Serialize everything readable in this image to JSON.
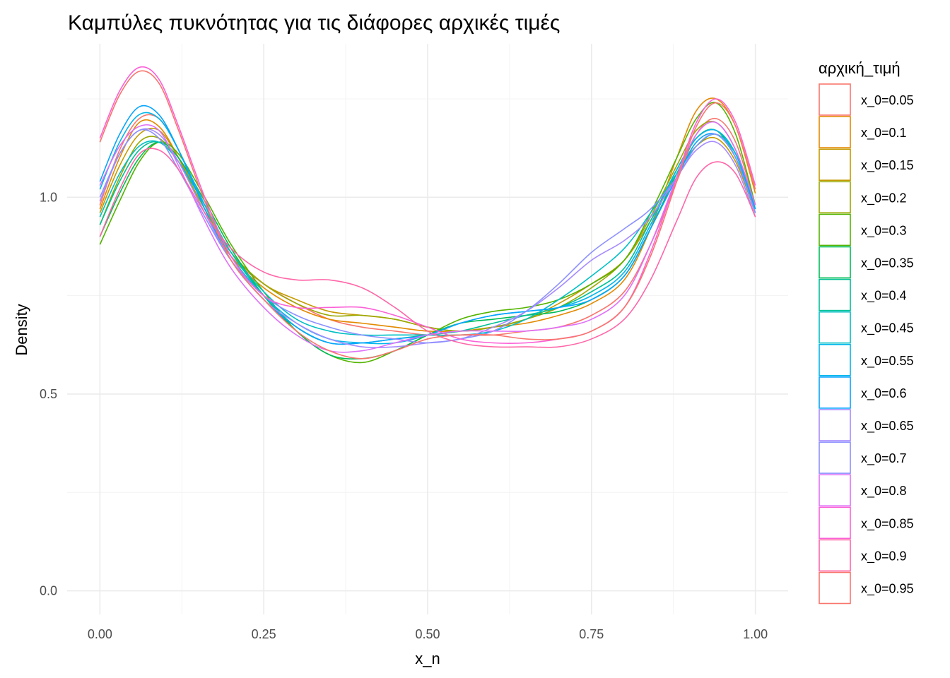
{
  "chart_data": {
    "type": "line",
    "title": "Καμπύλες πυκνότητας για τις διάφορες αρχικές τιμές",
    "xlabel": "x_n",
    "ylabel": "Density",
    "xlim": [
      -0.05,
      1.05
    ],
    "ylim": [
      -0.06,
      1.39
    ],
    "x_ticks": [
      0.0,
      0.25,
      0.5,
      0.75,
      1.0
    ],
    "x_tick_labels": [
      "0.00",
      "0.25",
      "0.50",
      "0.75",
      "1.00"
    ],
    "y_ticks": [
      0.0,
      0.5,
      1.0
    ],
    "y_tick_labels": [
      "0.0",
      "0.5",
      "1.0"
    ],
    "grid": true,
    "legend": {
      "title": "αρχική_τιμή",
      "position": "right"
    },
    "x": [
      0.0,
      0.03,
      0.06,
      0.09,
      0.12,
      0.16,
      0.2,
      0.25,
      0.3,
      0.35,
      0.4,
      0.45,
      0.5,
      0.55,
      0.6,
      0.65,
      0.7,
      0.75,
      0.8,
      0.84,
      0.88,
      0.91,
      0.94,
      0.97,
      1.0
    ],
    "series": [
      {
        "name": "x_0=0.05",
        "color": "#F8766D",
        "values": [
          0.98,
          1.12,
          1.2,
          1.2,
          1.12,
          0.97,
          0.85,
          0.78,
          0.73,
          0.69,
          0.67,
          0.66,
          0.65,
          0.65,
          0.65,
          0.66,
          0.67,
          0.7,
          0.76,
          0.88,
          1.04,
          1.16,
          1.2,
          1.14,
          0.98
        ]
      },
      {
        "name": "x_0=0.1",
        "color": "#E38900",
        "values": [
          0.97,
          1.1,
          1.19,
          1.18,
          1.1,
          0.96,
          0.85,
          0.77,
          0.72,
          0.69,
          0.68,
          0.67,
          0.66,
          0.66,
          0.67,
          0.68,
          0.7,
          0.73,
          0.79,
          0.92,
          1.1,
          1.22,
          1.25,
          1.18,
          1.01
        ]
      },
      {
        "name": "x_0=0.15",
        "color": "#C49A00",
        "values": [
          0.96,
          1.08,
          1.16,
          1.17,
          1.1,
          0.98,
          0.86,
          0.78,
          0.74,
          0.71,
          0.7,
          0.69,
          0.67,
          0.66,
          0.67,
          0.69,
          0.73,
          0.78,
          0.84,
          0.94,
          1.06,
          1.13,
          1.15,
          1.09,
          0.96
        ]
      },
      {
        "name": "x_0=0.2",
        "color": "#99A800",
        "values": [
          0.93,
          1.05,
          1.14,
          1.15,
          1.09,
          0.97,
          0.86,
          0.78,
          0.73,
          0.7,
          0.7,
          0.69,
          0.67,
          0.66,
          0.67,
          0.69,
          0.72,
          0.77,
          0.84,
          0.95,
          1.08,
          1.17,
          1.19,
          1.12,
          0.97
        ]
      },
      {
        "name": "x_0=0.3",
        "color": "#53B400",
        "values": [
          0.88,
          0.99,
          1.09,
          1.14,
          1.11,
          1.0,
          0.88,
          0.76,
          0.66,
          0.6,
          0.58,
          0.61,
          0.65,
          0.69,
          0.71,
          0.72,
          0.74,
          0.78,
          0.84,
          0.96,
          1.1,
          1.2,
          1.24,
          1.16,
          0.98
        ]
      },
      {
        "name": "x_0=0.35",
        "color": "#00BC56",
        "values": [
          0.9,
          1.01,
          1.1,
          1.14,
          1.1,
          0.99,
          0.87,
          0.75,
          0.66,
          0.6,
          0.59,
          0.61,
          0.65,
          0.68,
          0.69,
          0.7,
          0.71,
          0.74,
          0.8,
          0.92,
          1.06,
          1.15,
          1.17,
          1.1,
          0.96
        ]
      },
      {
        "name": "x_0=0.4",
        "color": "#00C094",
        "values": [
          0.93,
          1.04,
          1.12,
          1.14,
          1.09,
          0.98,
          0.86,
          0.75,
          0.67,
          0.63,
          0.63,
          0.64,
          0.65,
          0.66,
          0.68,
          0.7,
          0.72,
          0.76,
          0.82,
          0.94,
          1.07,
          1.15,
          1.17,
          1.11,
          0.97
        ]
      },
      {
        "name": "x_0=0.45",
        "color": "#00BFC4",
        "values": [
          0.95,
          1.06,
          1.13,
          1.14,
          1.09,
          0.98,
          0.86,
          0.76,
          0.69,
          0.66,
          0.65,
          0.65,
          0.65,
          0.65,
          0.66,
          0.69,
          0.74,
          0.8,
          0.87,
          0.96,
          1.06,
          1.13,
          1.16,
          1.11,
          0.98
        ]
      },
      {
        "name": "x_0=0.55",
        "color": "#00B6EB",
        "values": [
          1.02,
          1.14,
          1.21,
          1.2,
          1.12,
          0.98,
          0.85,
          0.75,
          0.68,
          0.64,
          0.63,
          0.63,
          0.65,
          0.68,
          0.7,
          0.71,
          0.72,
          0.75,
          0.81,
          0.93,
          1.07,
          1.15,
          1.17,
          1.11,
          0.97
        ]
      },
      {
        "name": "x_0=0.6",
        "color": "#06A4FF",
        "values": [
          1.04,
          1.16,
          1.23,
          1.21,
          1.12,
          0.97,
          0.84,
          0.74,
          0.67,
          0.63,
          0.63,
          0.64,
          0.65,
          0.68,
          0.7,
          0.71,
          0.72,
          0.74,
          0.8,
          0.92,
          1.05,
          1.14,
          1.16,
          1.1,
          0.97
        ]
      },
      {
        "name": "x_0=0.65",
        "color": "#A58AFF",
        "values": [
          0.99,
          1.11,
          1.17,
          1.16,
          1.09,
          0.96,
          0.84,
          0.74,
          0.68,
          0.64,
          0.62,
          0.62,
          0.63,
          0.64,
          0.67,
          0.71,
          0.77,
          0.84,
          0.89,
          0.95,
          1.05,
          1.12,
          1.14,
          1.08,
          0.95
        ]
      },
      {
        "name": "x_0=0.7",
        "color": "#8C90FF",
        "values": [
          1.0,
          1.11,
          1.17,
          1.15,
          1.07,
          0.95,
          0.84,
          0.75,
          0.7,
          0.67,
          0.65,
          0.64,
          0.63,
          0.64,
          0.66,
          0.71,
          0.78,
          0.86,
          0.92,
          0.97,
          1.05,
          1.13,
          1.16,
          1.1,
          0.96
        ]
      },
      {
        "name": "x_0=0.8",
        "color": "#DF70F8",
        "values": [
          1.03,
          1.13,
          1.18,
          1.17,
          1.08,
          0.94,
          0.82,
          0.72,
          0.65,
          0.61,
          0.61,
          0.63,
          0.65,
          0.66,
          0.66,
          0.66,
          0.67,
          0.69,
          0.75,
          0.88,
          1.05,
          1.16,
          1.19,
          1.12,
          0.98
        ]
      },
      {
        "name": "x_0=0.85",
        "color": "#FB61D7",
        "values": [
          1.15,
          1.27,
          1.33,
          1.3,
          1.18,
          1.0,
          0.85,
          0.75,
          0.72,
          0.72,
          0.72,
          0.7,
          0.67,
          0.64,
          0.63,
          0.63,
          0.64,
          0.66,
          0.72,
          0.86,
          1.05,
          1.19,
          1.25,
          1.19,
          1.03
        ]
      },
      {
        "name": "x_0=0.9",
        "color": "#FF66A8",
        "values": [
          0.9,
          1.02,
          1.11,
          1.12,
          1.07,
          0.96,
          0.87,
          0.81,
          0.79,
          0.79,
          0.77,
          0.72,
          0.66,
          0.63,
          0.62,
          0.62,
          0.62,
          0.64,
          0.69,
          0.79,
          0.94,
          1.05,
          1.09,
          1.06,
          0.95
        ]
      },
      {
        "name": "x_0=0.95",
        "color": "#F8766D",
        "values": [
          1.14,
          1.26,
          1.32,
          1.29,
          1.17,
          0.99,
          0.84,
          0.74,
          0.66,
          0.61,
          0.59,
          0.61,
          0.64,
          0.65,
          0.65,
          0.64,
          0.64,
          0.66,
          0.72,
          0.85,
          1.04,
          1.18,
          1.24,
          1.18,
          1.02
        ]
      }
    ]
  }
}
